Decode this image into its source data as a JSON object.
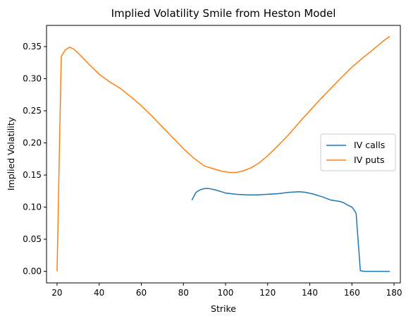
{
  "chart_data": {
    "type": "line",
    "title": "Implied Volatility Smile from Heston Model",
    "xlabel": "Strike",
    "ylabel": "Implied Volatility",
    "xlim": [
      15,
      183
    ],
    "ylim": [
      -0.018,
      0.383
    ],
    "xticks": [
      20,
      40,
      60,
      80,
      100,
      120,
      140,
      160,
      180
    ],
    "yticks": [
      0.0,
      0.05,
      0.1,
      0.15,
      0.2,
      0.25,
      0.3,
      0.35
    ],
    "ytick_labels": [
      "0.00",
      "0.05",
      "0.10",
      "0.15",
      "0.20",
      "0.25",
      "0.30",
      "0.35"
    ],
    "grid": false,
    "legend": "center-right",
    "series": [
      {
        "name": "IV calls",
        "color": "#1f77b4",
        "x": [
          84,
          86,
          88,
          90,
          92,
          95,
          100,
          105,
          110,
          115,
          120,
          125,
          130,
          135,
          138,
          142,
          146,
          150,
          154,
          156,
          158,
          160,
          161,
          162,
          164,
          166,
          170,
          174,
          178
        ],
        "y": [
          0.111,
          0.123,
          0.127,
          0.129,
          0.129,
          0.127,
          0.122,
          0.12,
          0.119,
          0.119,
          0.12,
          0.121,
          0.123,
          0.124,
          0.123,
          0.12,
          0.116,
          0.111,
          0.109,
          0.107,
          0.103,
          0.1,
          0.096,
          0.09,
          0.001,
          0.0,
          0.0,
          0.0,
          0.0
        ]
      },
      {
        "name": "IV puts",
        "color": "#ff7f0e",
        "x": [
          20,
          22,
          24,
          26,
          28,
          30,
          35,
          40,
          45,
          50,
          55,
          60,
          65,
          70,
          75,
          80,
          85,
          90,
          95,
          98,
          100,
          102,
          105,
          108,
          112,
          116,
          120,
          125,
          130,
          135,
          140,
          145,
          150,
          155,
          160,
          165,
          170,
          175,
          178
        ],
        "y": [
          0.0,
          0.335,
          0.345,
          0.349,
          0.346,
          0.34,
          0.323,
          0.307,
          0.295,
          0.285,
          0.272,
          0.258,
          0.242,
          0.225,
          0.208,
          0.191,
          0.176,
          0.164,
          0.159,
          0.156,
          0.155,
          0.154,
          0.154,
          0.156,
          0.161,
          0.169,
          0.18,
          0.196,
          0.213,
          0.232,
          0.25,
          0.268,
          0.285,
          0.302,
          0.318,
          0.332,
          0.345,
          0.359,
          0.366
        ]
      }
    ]
  }
}
